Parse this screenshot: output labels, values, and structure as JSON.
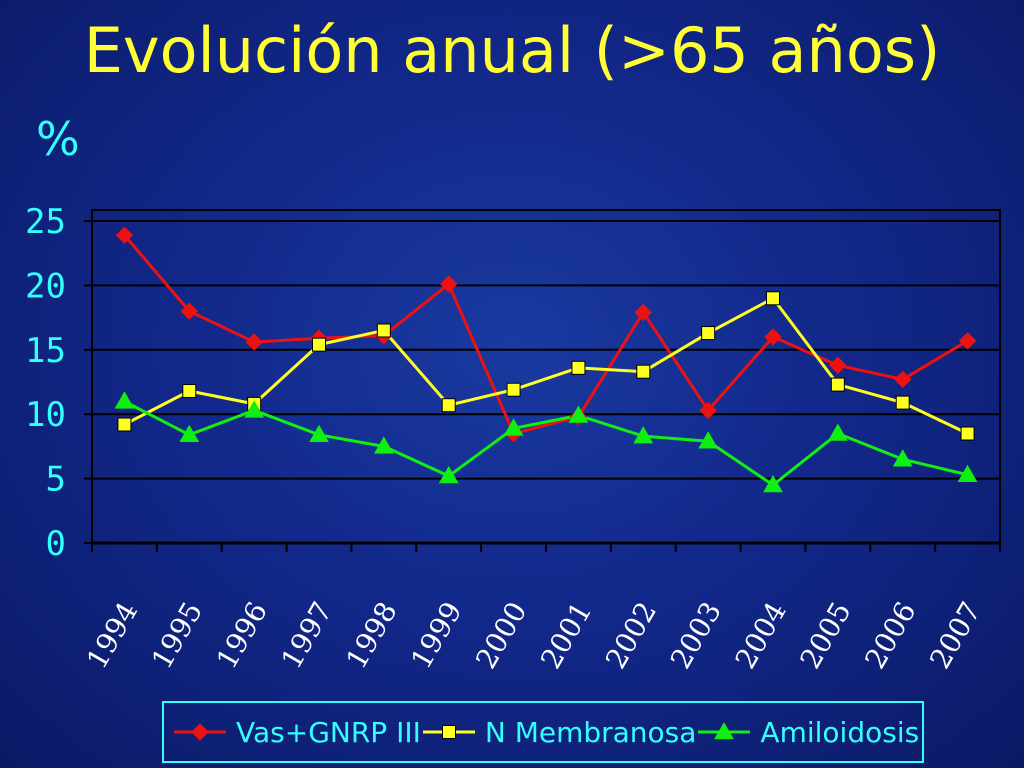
{
  "chart_data": {
    "type": "line",
    "title": "Evolución anual (>65 años)",
    "ylabel": "%",
    "xlabel": "",
    "ylim": [
      0,
      25
    ],
    "yticks": [
      0,
      5,
      10,
      15,
      20,
      25
    ],
    "categories": [
      "1994",
      "1995",
      "1996",
      "1997",
      "1998",
      "1999",
      "2000",
      "2001",
      "2002",
      "2003",
      "2004",
      "2005",
      "2006",
      "2007"
    ],
    "grid": "horizontal",
    "legend_position": "bottom",
    "series": [
      {
        "name": "Vas+GNRP III",
        "color": "#ee1111",
        "marker": "diamond",
        "values": [
          23.9,
          18.0,
          15.6,
          15.9,
          16.1,
          20.1,
          8.5,
          9.8,
          17.9,
          10.3,
          16.0,
          13.8,
          12.7,
          15.7
        ]
      },
      {
        "name": "N Membranosa",
        "color": "#ffff22",
        "marker": "square",
        "values": [
          9.2,
          11.8,
          10.8,
          15.4,
          16.5,
          10.7,
          11.9,
          13.6,
          13.3,
          16.3,
          19.0,
          12.3,
          10.9,
          8.5
        ]
      },
      {
        "name": "Amiloidosis",
        "color": "#11ee11",
        "marker": "triangle",
        "values": [
          11.0,
          8.4,
          10.3,
          8.4,
          7.5,
          5.2,
          8.9,
          9.9,
          8.3,
          7.9,
          4.5,
          8.5,
          6.5,
          5.3
        ]
      }
    ]
  },
  "colors": {
    "axis": "#000000",
    "tick_y": "#33ffff",
    "tick_x": "#ffffff",
    "title": "#ffff33"
  }
}
